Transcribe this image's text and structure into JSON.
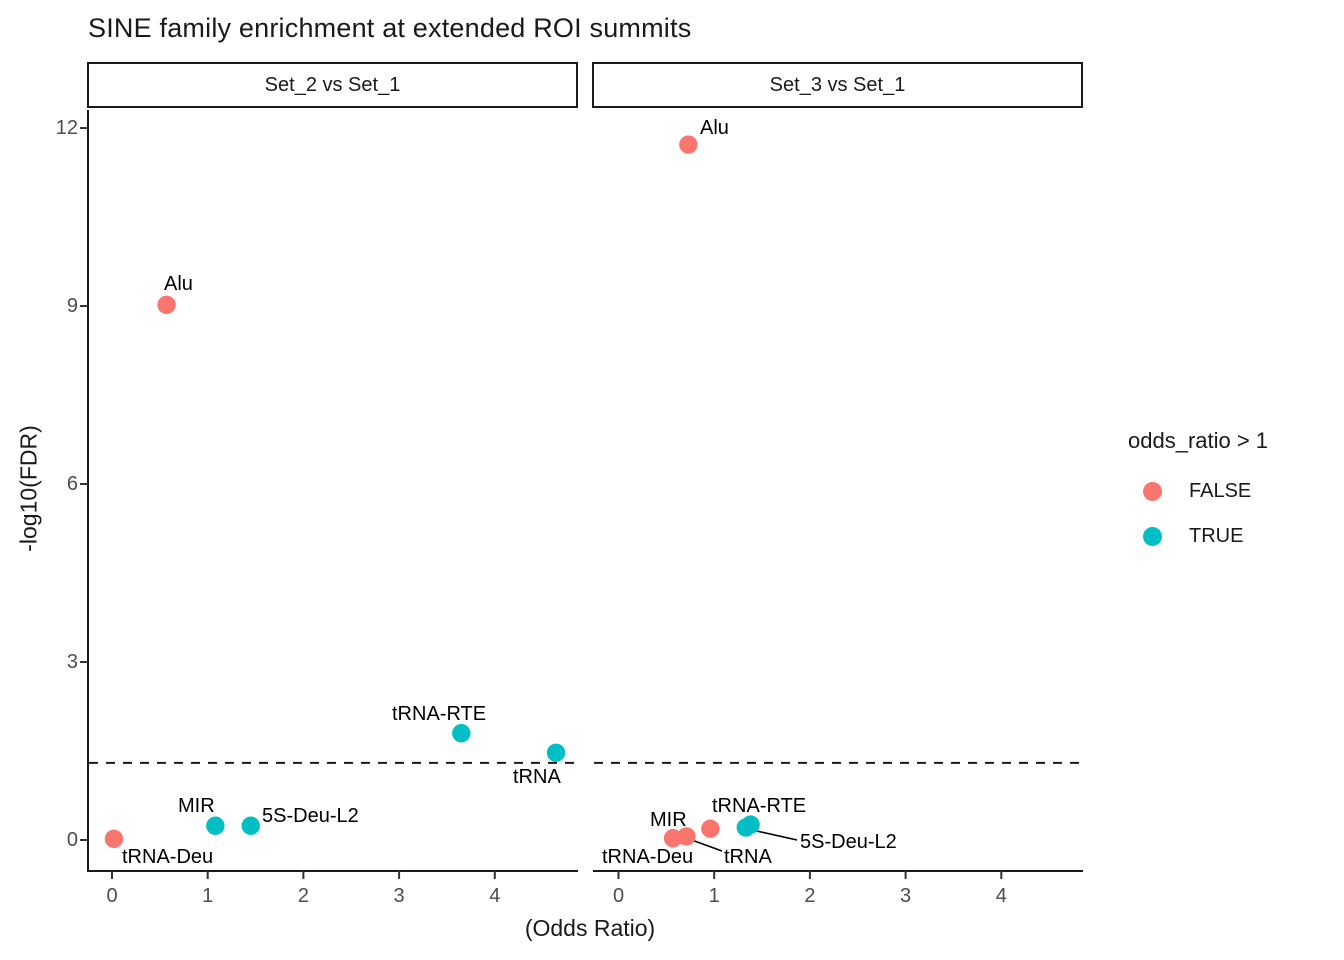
{
  "title": "SINE family enrichment at extended ROI summits",
  "axes": {
    "x_label": "(Odds Ratio)",
    "y_label": "-log10(FDR)",
    "x_ticks": [
      0,
      1,
      2,
      3,
      4
    ],
    "y_ticks": [
      0,
      3,
      6,
      9,
      12
    ]
  },
  "legend": {
    "title": "odds_ratio > 1",
    "entries": [
      {
        "label": "FALSE",
        "color": "#F8766D"
      },
      {
        "label": "TRUE",
        "color": "#00BFC4"
      }
    ]
  },
  "chart_data": {
    "type": "scatter",
    "title": "SINE family enrichment at extended ROI summits",
    "xlabel": "(Odds Ratio)",
    "ylabel": "-log10(FDR)",
    "xlim": [
      -0.25,
      4.87
    ],
    "ylim": [
      -0.55,
      12.35
    ],
    "grid": false,
    "legend_position": "right",
    "threshold_line": {
      "y": 1.3,
      "style": "dashed",
      "color": "#1a1a1a"
    },
    "group_colors": {
      "FALSE": "#F8766D",
      "TRUE": "#00BFC4"
    },
    "facets": [
      {
        "label": "Set_2 vs Set_1",
        "points": [
          {
            "family": "Alu",
            "odds_ratio": 0.57,
            "neg_log10_fdr": 9.02,
            "odds_ratio_gt_1": "FALSE"
          },
          {
            "family": "tRNA-RTE",
            "odds_ratio": 3.65,
            "neg_log10_fdr": 1.8,
            "odds_ratio_gt_1": "TRUE"
          },
          {
            "family": "tRNA",
            "odds_ratio": 4.64,
            "neg_log10_fdr": 1.47,
            "odds_ratio_gt_1": "TRUE"
          },
          {
            "family": "MIR",
            "odds_ratio": 1.08,
            "neg_log10_fdr": 0.24,
            "odds_ratio_gt_1": "TRUE"
          },
          {
            "family": "5S-Deu-L2",
            "odds_ratio": 1.45,
            "neg_log10_fdr": 0.24,
            "odds_ratio_gt_1": "TRUE"
          },
          {
            "family": "tRNA-Deu",
            "odds_ratio": 0.02,
            "neg_log10_fdr": 0.02,
            "odds_ratio_gt_1": "FALSE"
          }
        ]
      },
      {
        "label": "Set_3 vs Set_1",
        "points": [
          {
            "family": "Alu",
            "odds_ratio": 0.73,
            "neg_log10_fdr": 11.72,
            "odds_ratio_gt_1": "FALSE"
          },
          {
            "family": "tRNA-Deu",
            "odds_ratio": 0.57,
            "neg_log10_fdr": 0.03,
            "odds_ratio_gt_1": "FALSE"
          },
          {
            "family": "tRNA",
            "odds_ratio": 0.71,
            "neg_log10_fdr": 0.06,
            "odds_ratio_gt_1": "FALSE"
          },
          {
            "family": "MIR",
            "odds_ratio": 0.96,
            "neg_log10_fdr": 0.19,
            "odds_ratio_gt_1": "FALSE"
          },
          {
            "family": "5S-Deu-L2",
            "odds_ratio": 1.33,
            "neg_log10_fdr": 0.21,
            "odds_ratio_gt_1": "TRUE"
          },
          {
            "family": "tRNA-RTE",
            "odds_ratio": 1.38,
            "neg_log10_fdr": 0.26,
            "odds_ratio_gt_1": "TRUE"
          }
        ]
      }
    ]
  }
}
